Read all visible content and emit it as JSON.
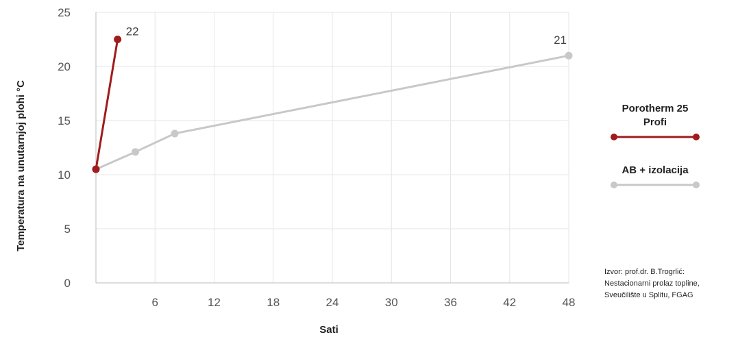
{
  "chart_data": {
    "type": "line",
    "xlabel": "Sati",
    "ylabel": "Temperatura na unutarnjoj plohi °C",
    "xlim": [
      0,
      48
    ],
    "ylim": [
      0,
      25
    ],
    "x_ticks": [
      6,
      12,
      18,
      24,
      30,
      36,
      42,
      48
    ],
    "y_ticks": [
      0,
      5,
      10,
      15,
      20,
      25
    ],
    "grid": true,
    "legend_position": "right",
    "series": [
      {
        "name": "Porotherm 25 Profi",
        "color": "#a01b1b",
        "x": [
          0,
          2.2
        ],
        "y": [
          10.5,
          22.5
        ],
        "end_label": "22"
      },
      {
        "name": "AB + izolacija",
        "color": "#c8c8c8",
        "x": [
          0,
          4,
          8,
          48
        ],
        "y": [
          10.5,
          12.1,
          13.8,
          21
        ],
        "end_label": "21"
      }
    ]
  },
  "legend": {
    "items": [
      {
        "lines": [
          "Porotherm 25",
          "Profi"
        ],
        "color": "#a01b1b"
      },
      {
        "lines": [
          "AB + izolacija"
        ],
        "color": "#c8c8c8"
      }
    ]
  },
  "source_note": {
    "lines": [
      "Izvor: prof.dr. B.Trogrlić:",
      "Nestacionarni prolaz topline,",
      "Sveučilište u Splitu, FGAG"
    ]
  }
}
